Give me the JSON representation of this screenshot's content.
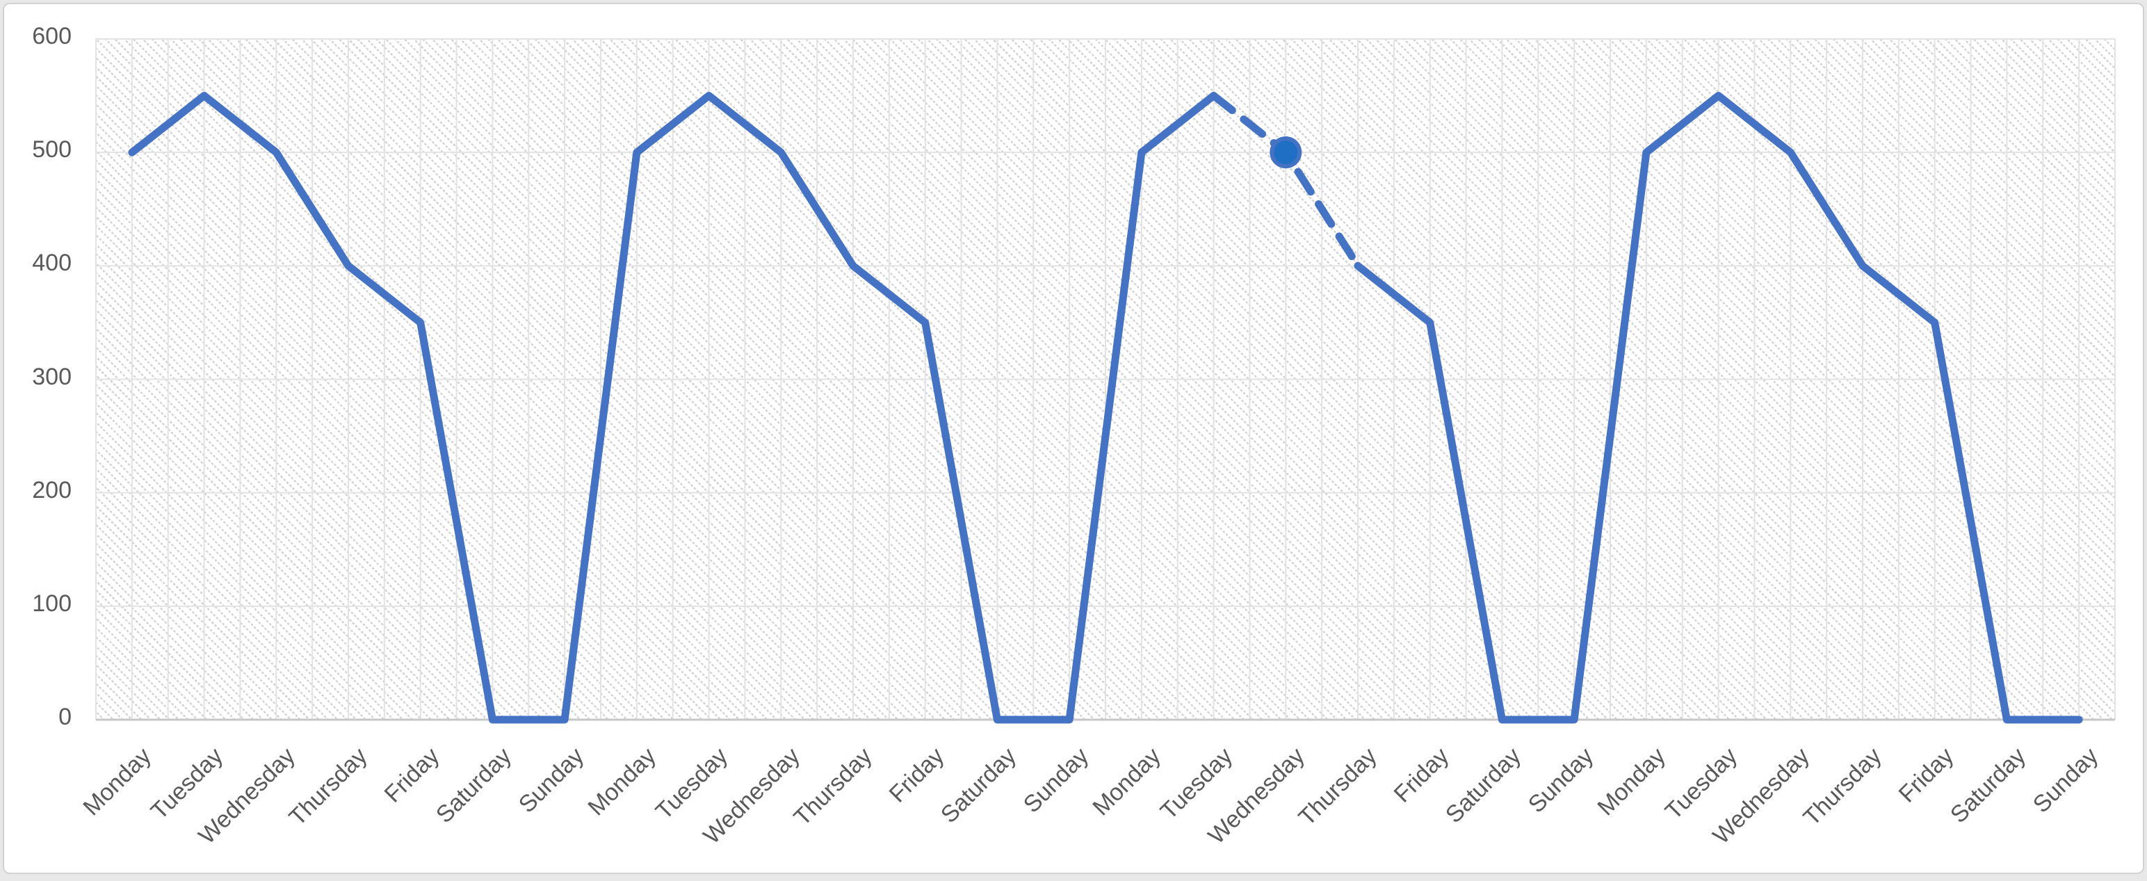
{
  "chart_data": {
    "type": "line",
    "title": "",
    "categories": [
      "Monday",
      "Tuesday",
      "Wednesday",
      "Thursday",
      "Friday",
      "Saturday",
      "Sunday",
      "Monday",
      "Tuesday",
      "Wednesday",
      "Thursday",
      "Friday",
      "Saturday",
      "Sunday",
      "Monday",
      "Tuesday",
      "Wednesday",
      "Thursday",
      "Friday",
      "Saturday",
      "Sunday",
      "Monday",
      "Tuesday",
      "Wednesday",
      "Thursday",
      "Friday",
      "Saturday",
      "Sunday"
    ],
    "values": [
      500,
      550,
      500,
      400,
      350,
      0,
      0,
      500,
      550,
      500,
      400,
      350,
      0,
      0,
      500,
      550,
      500,
      400,
      350,
      0,
      0,
      500,
      550,
      500,
      400,
      350,
      0,
      0
    ],
    "weekly_pattern": {
      "Monday": 500,
      "Tuesday": 550,
      "Wednesday": 500,
      "Thursday": 400,
      "Friday": 350,
      "Saturday": 0,
      "Sunday": 0
    },
    "xlabel": "",
    "ylabel": "",
    "ylim": [
      0,
      600
    ],
    "yticks": [
      0,
      100,
      200,
      300,
      400,
      500,
      600
    ],
    "x_tick_rotation_deg": -45,
    "grid": "horizontal major + vertical half-category lines, hatched plot fill",
    "legend": "none",
    "series_name": "",
    "dashed_segment": {
      "from_index": 15,
      "to_index": 17,
      "note": "week-3 Tuesday to Thursday drawn dashed (projected values)"
    },
    "highlighted_point": {
      "index": 16,
      "category": "Wednesday",
      "value": 500,
      "marker": "large filled circle"
    }
  },
  "colors": {
    "line": "#4472C4",
    "marker_fill": "#1F6FC4",
    "marker_ring": "#4472C4",
    "gridline": "#E3E3E3",
    "axis_line": "#C7C7C7",
    "tick_label": "#595959",
    "hatch": "#D5D5D5",
    "frame_border": "#D2D2D2",
    "chart_background": "#FFFFFF",
    "page_background": "#E8E8E8"
  }
}
